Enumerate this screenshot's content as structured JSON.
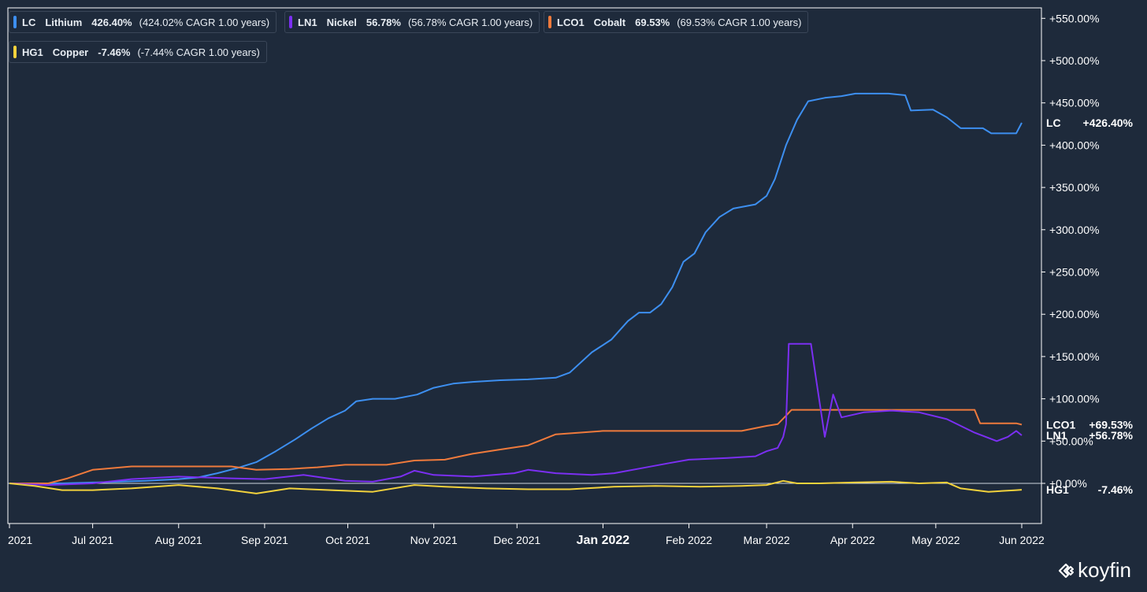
{
  "legend": [
    {
      "ticker": "LC",
      "name": "Lithium",
      "pct": "426.40%",
      "cagr": "(424.02% CAGR 1.00 years)",
      "color": "#3d8ff0"
    },
    {
      "ticker": "LN1",
      "name": "Nickel",
      "pct": "56.78%",
      "cagr": "(56.78% CAGR 1.00 years)",
      "color": "#7b2ff2"
    },
    {
      "ticker": "LCO1",
      "name": "Cobalt",
      "pct": "69.53%",
      "cagr": "(69.53% CAGR 1.00 years)",
      "color": "#ef7a3c"
    },
    {
      "ticker": "HG1",
      "name": "Copper",
      "pct": "-7.46%",
      "cagr": "(-7.44% CAGR 1.00 years)",
      "color": "#f2d23c"
    }
  ],
  "logo": {
    "text": "koyfin",
    "icon": "koyfin-logo-icon"
  },
  "chart_data": {
    "type": "line",
    "x_range": [
      "2021-06-01",
      "2022-06-01"
    ],
    "y_range": [
      -50,
      560
    ],
    "y_ticks": [
      0,
      50,
      100,
      150,
      200,
      250,
      300,
      350,
      400,
      450,
      500,
      550
    ],
    "y_tick_labels": [
      "+0.00%",
      "+50.00%",
      "+100.00%",
      "+150.00%",
      "+200.00%",
      "+250.00%",
      "+300.00%",
      "+350.00%",
      "+400.00%",
      "+450.00%",
      "+500.00%",
      "+550.00%"
    ],
    "x_ticks": [
      {
        "date": "2021-06-01",
        "label": "2021",
        "bold": false
      },
      {
        "date": "2021-07-01",
        "label": "Jul 2021",
        "bold": false
      },
      {
        "date": "2021-08-01",
        "label": "Aug 2021",
        "bold": false
      },
      {
        "date": "2021-09-01",
        "label": "Sep 2021",
        "bold": false
      },
      {
        "date": "2021-10-01",
        "label": "Oct 2021",
        "bold": false
      },
      {
        "date": "2021-11-01",
        "label": "Nov 2021",
        "bold": false
      },
      {
        "date": "2021-12-01",
        "label": "Dec 2021",
        "bold": false
      },
      {
        "date": "2022-01-01",
        "label": "Jan 2022",
        "bold": true
      },
      {
        "date": "2022-02-01",
        "label": "Feb 2022",
        "bold": false
      },
      {
        "date": "2022-03-01",
        "label": "Mar 2022",
        "bold": false
      },
      {
        "date": "2022-04-01",
        "label": "Apr 2022",
        "bold": false
      },
      {
        "date": "2022-05-01",
        "label": "May 2022",
        "bold": false
      },
      {
        "date": "2022-06-01",
        "label": "Jun 2022",
        "bold": false
      }
    ],
    "end_labels": [
      {
        "ticker": "LC",
        "value": "+426.40%",
        "y": 426.4
      },
      {
        "ticker": "LCO1",
        "value": "+69.53%",
        "y": 69.5
      },
      {
        "ticker": "LN1",
        "value": "+56.78%",
        "y": 56.8
      },
      {
        "ticker": "HG1",
        "value": "-7.46%",
        "y": -7.5
      }
    ],
    "series": [
      {
        "name": "LC",
        "color": "#3d8ff0",
        "points": [
          [
            "2021-06-01",
            0
          ],
          [
            "2021-06-10",
            0
          ],
          [
            "2021-06-20",
            0
          ],
          [
            "2021-07-01",
            1
          ],
          [
            "2021-07-10",
            2
          ],
          [
            "2021-07-20",
            3
          ],
          [
            "2021-08-01",
            5
          ],
          [
            "2021-08-08",
            7
          ],
          [
            "2021-08-15",
            12
          ],
          [
            "2021-08-22",
            18
          ],
          [
            "2021-08-29",
            25
          ],
          [
            "2021-09-05",
            38
          ],
          [
            "2021-09-12",
            52
          ],
          [
            "2021-09-18",
            65
          ],
          [
            "2021-09-24",
            77
          ],
          [
            "2021-09-30",
            86
          ],
          [
            "2021-10-04",
            97
          ],
          [
            "2021-10-10",
            100
          ],
          [
            "2021-10-18",
            100
          ],
          [
            "2021-10-26",
            105
          ],
          [
            "2021-11-01",
            113
          ],
          [
            "2021-11-08",
            118
          ],
          [
            "2021-11-15",
            120
          ],
          [
            "2021-11-25",
            122
          ],
          [
            "2021-12-05",
            123
          ],
          [
            "2021-12-15",
            125
          ],
          [
            "2021-12-20",
            131
          ],
          [
            "2021-12-28",
            155
          ],
          [
            "2022-01-04",
            170
          ],
          [
            "2022-01-10",
            192
          ],
          [
            "2022-01-14",
            202
          ],
          [
            "2022-01-18",
            202
          ],
          [
            "2022-01-22",
            212
          ],
          [
            "2022-01-26",
            232
          ],
          [
            "2022-01-30",
            262
          ],
          [
            "2022-02-03",
            272
          ],
          [
            "2022-02-07",
            297
          ],
          [
            "2022-02-12",
            315
          ],
          [
            "2022-02-17",
            325
          ],
          [
            "2022-02-25",
            330
          ],
          [
            "2022-03-01",
            340
          ],
          [
            "2022-03-04",
            360
          ],
          [
            "2022-03-08",
            400
          ],
          [
            "2022-03-12",
            430
          ],
          [
            "2022-03-16",
            452
          ],
          [
            "2022-03-22",
            456
          ],
          [
            "2022-03-28",
            458
          ],
          [
            "2022-04-02",
            461
          ],
          [
            "2022-04-14",
            461
          ],
          [
            "2022-04-20",
            459
          ],
          [
            "2022-04-22",
            441
          ],
          [
            "2022-04-30",
            442
          ],
          [
            "2022-05-05",
            433
          ],
          [
            "2022-05-10",
            420
          ],
          [
            "2022-05-18",
            420
          ],
          [
            "2022-05-21",
            414
          ],
          [
            "2022-05-30",
            414
          ],
          [
            "2022-06-01",
            426.4
          ]
        ]
      },
      {
        "name": "LCO1",
        "color": "#ef7a3c",
        "points": [
          [
            "2021-06-01",
            0
          ],
          [
            "2021-06-15",
            0
          ],
          [
            "2021-06-22",
            6
          ],
          [
            "2021-07-01",
            16
          ],
          [
            "2021-07-15",
            20
          ],
          [
            "2021-08-01",
            20
          ],
          [
            "2021-08-20",
            20
          ],
          [
            "2021-08-29",
            16
          ],
          [
            "2021-09-10",
            17
          ],
          [
            "2021-09-20",
            19
          ],
          [
            "2021-09-30",
            22
          ],
          [
            "2021-10-15",
            22
          ],
          [
            "2021-10-25",
            27
          ],
          [
            "2021-11-05",
            28
          ],
          [
            "2021-11-15",
            35
          ],
          [
            "2021-11-25",
            40
          ],
          [
            "2021-12-05",
            45
          ],
          [
            "2021-12-15",
            58
          ],
          [
            "2022-01-01",
            62
          ],
          [
            "2022-01-20",
            62
          ],
          [
            "2022-02-01",
            62
          ],
          [
            "2022-02-20",
            62
          ],
          [
            "2022-03-01",
            68
          ],
          [
            "2022-03-05",
            70
          ],
          [
            "2022-03-08",
            80
          ],
          [
            "2022-03-10",
            87
          ],
          [
            "2022-03-25",
            87
          ],
          [
            "2022-04-20",
            87
          ],
          [
            "2022-05-10",
            87
          ],
          [
            "2022-05-15",
            87
          ],
          [
            "2022-05-17",
            71
          ],
          [
            "2022-05-30",
            71
          ],
          [
            "2022-06-01",
            69.5
          ]
        ]
      },
      {
        "name": "LN1",
        "color": "#7b2ff2",
        "points": [
          [
            "2021-06-01",
            0
          ],
          [
            "2021-06-15",
            -2
          ],
          [
            "2021-07-01",
            0
          ],
          [
            "2021-07-15",
            5
          ],
          [
            "2021-08-01",
            8
          ],
          [
            "2021-08-20",
            6
          ],
          [
            "2021-09-01",
            5
          ],
          [
            "2021-09-15",
            10
          ],
          [
            "2021-09-30",
            3
          ],
          [
            "2021-10-10",
            2
          ],
          [
            "2021-10-20",
            8
          ],
          [
            "2021-10-25",
            15
          ],
          [
            "2021-11-01",
            10
          ],
          [
            "2021-11-15",
            8
          ],
          [
            "2021-11-30",
            12
          ],
          [
            "2021-12-05",
            16
          ],
          [
            "2021-12-15",
            12
          ],
          [
            "2021-12-28",
            10
          ],
          [
            "2022-01-05",
            12
          ],
          [
            "2022-01-15",
            18
          ],
          [
            "2022-01-25",
            24
          ],
          [
            "2022-02-01",
            28
          ],
          [
            "2022-02-15",
            30
          ],
          [
            "2022-02-25",
            32
          ],
          [
            "2022-03-01",
            38
          ],
          [
            "2022-03-05",
            42
          ],
          [
            "2022-03-07",
            55
          ],
          [
            "2022-03-08",
            70
          ],
          [
            "2022-03-09",
            165
          ],
          [
            "2022-03-17",
            165
          ],
          [
            "2022-03-19",
            120
          ],
          [
            "2022-03-22",
            55
          ],
          [
            "2022-03-25",
            105
          ],
          [
            "2022-03-28",
            78
          ],
          [
            "2022-04-05",
            84
          ],
          [
            "2022-04-15",
            86
          ],
          [
            "2022-04-25",
            84
          ],
          [
            "2022-05-05",
            76
          ],
          [
            "2022-05-15",
            60
          ],
          [
            "2022-05-23",
            50
          ],
          [
            "2022-05-27",
            55
          ],
          [
            "2022-05-30",
            62
          ],
          [
            "2022-06-01",
            56.8
          ]
        ]
      },
      {
        "name": "HG1",
        "color": "#f2d23c",
        "points": [
          [
            "2021-06-01",
            0
          ],
          [
            "2021-06-10",
            -3
          ],
          [
            "2021-06-20",
            -8
          ],
          [
            "2021-07-01",
            -8
          ],
          [
            "2021-07-15",
            -6
          ],
          [
            "2021-08-01",
            -2
          ],
          [
            "2021-08-15",
            -6
          ],
          [
            "2021-08-29",
            -12
          ],
          [
            "2021-09-10",
            -6
          ],
          [
            "2021-09-25",
            -8
          ],
          [
            "2021-10-10",
            -10
          ],
          [
            "2021-10-25",
            -2
          ],
          [
            "2021-11-05",
            -4
          ],
          [
            "2021-11-20",
            -6
          ],
          [
            "2021-12-05",
            -7
          ],
          [
            "2021-12-20",
            -7
          ],
          [
            "2022-01-05",
            -4
          ],
          [
            "2022-01-20",
            -3
          ],
          [
            "2022-02-05",
            -4
          ],
          [
            "2022-02-20",
            -3
          ],
          [
            "2022-03-01",
            -2
          ],
          [
            "2022-03-07",
            3
          ],
          [
            "2022-03-12",
            0
          ],
          [
            "2022-03-20",
            0
          ],
          [
            "2022-04-01",
            1
          ],
          [
            "2022-04-15",
            2
          ],
          [
            "2022-04-25",
            0
          ],
          [
            "2022-05-05",
            1
          ],
          [
            "2022-05-10",
            -6
          ],
          [
            "2022-05-20",
            -10
          ],
          [
            "2022-05-30",
            -8
          ],
          [
            "2022-06-01",
            -7.5
          ]
        ]
      }
    ]
  }
}
